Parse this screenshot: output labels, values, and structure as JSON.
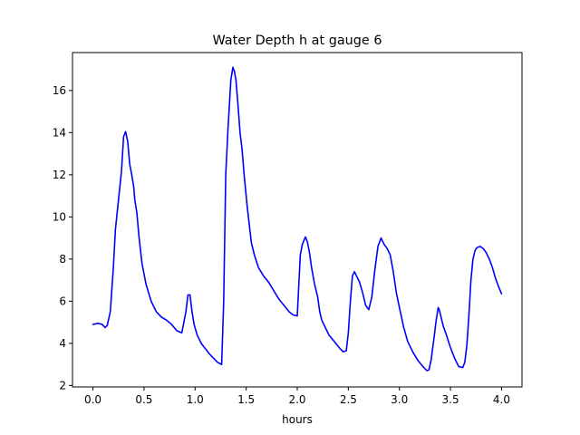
{
  "chart_data": {
    "type": "line",
    "title": "Water Depth h at gauge 6",
    "xlabel": "hours",
    "ylabel": "",
    "xlim": [
      -0.2,
      4.2
    ],
    "ylim": [
      1.93,
      17.8
    ],
    "xticks": [
      0.0,
      0.5,
      1.0,
      1.5,
      2.0,
      2.5,
      3.0,
      3.5,
      4.0
    ],
    "xtick_labels": [
      "0.0",
      "0.5",
      "1.0",
      "1.5",
      "2.0",
      "2.5",
      "3.0",
      "3.5",
      "4.0"
    ],
    "yticks": [
      2,
      4,
      6,
      8,
      10,
      12,
      14,
      16
    ],
    "ytick_labels": [
      "2",
      "4",
      "6",
      "8",
      "10",
      "12",
      "14",
      "16"
    ],
    "grid": false,
    "series": [
      {
        "color": "#0000ff",
        "x": [
          0.0,
          0.05,
          0.09,
          0.12,
          0.14,
          0.17,
          0.2,
          0.22,
          0.25,
          0.28,
          0.3,
          0.32,
          0.34,
          0.36,
          0.38,
          0.4,
          0.41,
          0.43,
          0.45,
          0.48,
          0.52,
          0.57,
          0.62,
          0.67,
          0.72,
          0.77,
          0.82,
          0.87,
          0.91,
          0.93,
          0.95,
          0.96,
          0.97,
          0.99,
          1.02,
          1.06,
          1.1,
          1.14,
          1.18,
          1.22,
          1.26,
          1.28,
          1.3,
          1.32,
          1.35,
          1.37,
          1.385,
          1.4,
          1.42,
          1.44,
          1.46,
          1.48,
          1.51,
          1.55,
          1.58,
          1.62,
          1.67,
          1.72,
          1.77,
          1.82,
          1.87,
          1.92,
          1.96,
          2.0,
          2.03,
          2.05,
          2.08,
          2.1,
          2.12,
          2.14,
          2.17,
          2.2,
          2.22,
          2.24,
          2.27,
          2.31,
          2.36,
          2.41,
          2.45,
          2.48,
          2.5,
          2.52,
          2.54,
          2.56,
          2.58,
          2.61,
          2.64,
          2.67,
          2.7,
          2.73,
          2.76,
          2.79,
          2.82,
          2.85,
          2.88,
          2.91,
          2.94,
          2.97,
          3.0,
          3.04,
          3.08,
          3.13,
          3.18,
          3.23,
          3.27,
          3.29,
          3.31,
          3.34,
          3.36,
          3.38,
          3.39,
          3.41,
          3.43,
          3.46,
          3.5,
          3.54,
          3.58,
          3.62,
          3.64,
          3.66,
          3.68,
          3.7,
          3.72,
          3.74,
          3.76,
          3.79,
          3.82,
          3.85,
          3.88,
          3.91,
          3.94,
          3.97,
          4.0
        ],
        "y": [
          4.9,
          4.95,
          4.9,
          4.75,
          4.85,
          5.5,
          7.6,
          9.4,
          10.8,
          12.2,
          13.8,
          14.05,
          13.6,
          12.5,
          12.0,
          11.4,
          10.8,
          10.2,
          9.1,
          7.8,
          6.8,
          6.0,
          5.5,
          5.25,
          5.1,
          4.9,
          4.6,
          4.5,
          5.5,
          6.3,
          6.3,
          5.9,
          5.5,
          4.9,
          4.4,
          4.0,
          3.75,
          3.5,
          3.3,
          3.1,
          3.0,
          6.0,
          12.0,
          14.0,
          16.5,
          17.1,
          16.9,
          16.5,
          15.3,
          14.0,
          13.2,
          12.0,
          10.5,
          8.8,
          8.2,
          7.6,
          7.2,
          6.9,
          6.5,
          6.1,
          5.8,
          5.5,
          5.35,
          5.3,
          8.2,
          8.7,
          9.05,
          8.8,
          8.3,
          7.6,
          6.8,
          6.2,
          5.5,
          5.1,
          4.8,
          4.4,
          4.1,
          3.8,
          3.6,
          3.65,
          4.5,
          6.0,
          7.2,
          7.4,
          7.2,
          6.9,
          6.4,
          5.8,
          5.6,
          6.2,
          7.5,
          8.6,
          9.0,
          8.7,
          8.5,
          8.2,
          7.4,
          6.4,
          5.7,
          4.8,
          4.1,
          3.6,
          3.2,
          2.9,
          2.7,
          2.75,
          3.2,
          4.3,
          5.1,
          5.7,
          5.6,
          5.2,
          4.8,
          4.4,
          3.8,
          3.3,
          2.9,
          2.85,
          3.1,
          3.9,
          5.3,
          7.0,
          8.0,
          8.4,
          8.55,
          8.6,
          8.5,
          8.3,
          8.0,
          7.6,
          7.1,
          6.7,
          6.35
        ]
      }
    ]
  }
}
